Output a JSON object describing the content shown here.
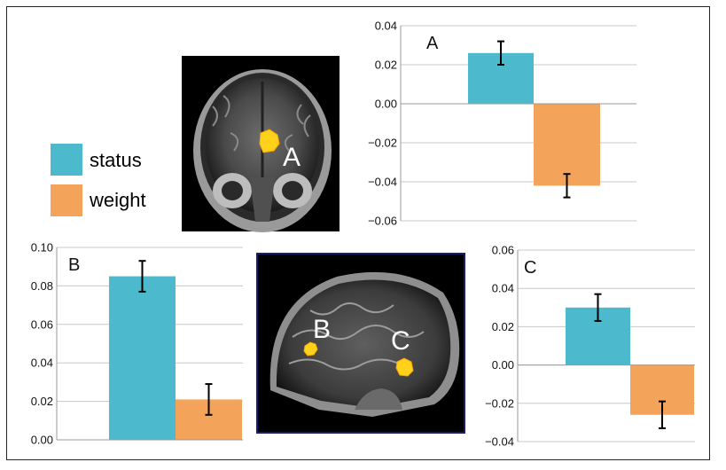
{
  "colors": {
    "status": "#4db9cd",
    "weight": "#f3a45a",
    "blob": "#ffd11a"
  },
  "legend": [
    {
      "label": "status",
      "color": "#4db9cd"
    },
    {
      "label": "weight",
      "color": "#f3a45a"
    }
  ],
  "brain_labels": {
    "coronal": "A",
    "sagittal_b": "B",
    "sagittal_c": "C"
  },
  "chart_data": [
    {
      "type": "bar",
      "panel": "A",
      "categories": [
        "status",
        "weight"
      ],
      "values": [
        0.026,
        -0.042
      ],
      "errors": [
        0.006,
        0.006
      ],
      "ylim": [
        -0.06,
        0.04
      ],
      "ticks": [
        "0.04",
        "0.02",
        "0.00",
        "−0.02",
        "−0.04",
        "−0.06"
      ],
      "tick_values": [
        0.04,
        0.02,
        0.0,
        -0.02,
        -0.04,
        -0.06
      ],
      "grid": true
    },
    {
      "type": "bar",
      "panel": "B",
      "categories": [
        "status",
        "weight"
      ],
      "values": [
        0.085,
        0.021
      ],
      "errors": [
        0.008,
        0.008
      ],
      "ylim": [
        0.0,
        0.1
      ],
      "ticks": [
        "0.10",
        "0.08",
        "0.06",
        "0.04",
        "0.02",
        "0.00"
      ],
      "tick_values": [
        0.1,
        0.08,
        0.06,
        0.04,
        0.02,
        0.0
      ],
      "grid": true
    },
    {
      "type": "bar",
      "panel": "C",
      "categories": [
        "status",
        "weight"
      ],
      "values": [
        0.03,
        -0.026
      ],
      "errors": [
        0.007,
        0.007
      ],
      "ylim": [
        -0.04,
        0.06
      ],
      "ticks": [
        "0.06",
        "0.04",
        "0.02",
        "0.00",
        "−0.02",
        "−0.04"
      ],
      "tick_values": [
        0.06,
        0.04,
        0.02,
        0.0,
        -0.02,
        -0.04
      ],
      "grid": true
    }
  ]
}
